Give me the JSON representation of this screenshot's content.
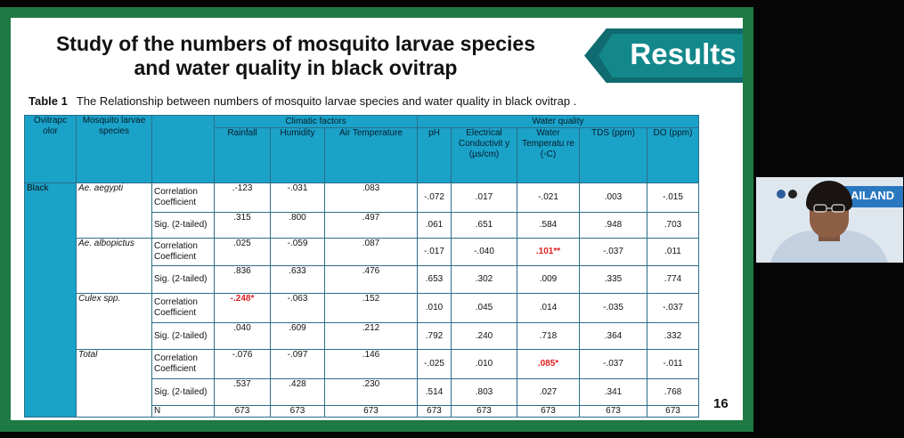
{
  "slide": {
    "title_line1": "Study of the numbers of mosquito larvae species",
    "title_line2": "and water quality in black ovitrap",
    "results_label": "Results",
    "caption_label": "Table 1",
    "caption_text": "The Relationship between numbers of mosquito larvae species and water quality in black ovitrap .",
    "page_number": "16"
  },
  "table": {
    "h_ovitrap": "Ovitrapc olor",
    "h_species": "Mosquito larvae species",
    "h_climatic": "Climatic factors",
    "h_water": "Water quality",
    "h_rainfall": "Rainfall",
    "h_humidity": "Humidity",
    "h_airtemp": "Air Temperature",
    "h_ph": "pH",
    "h_ec": "Electrical Conductivit y (µs/cm)",
    "h_wtemp": "Water Temperatu re (◦C)",
    "h_tds": "TDS (ppm)",
    "h_do": "DO (ppm)",
    "color_black": "Black",
    "sp1": "Ae. aegypti",
    "sp2": "Ae. albopictus",
    "sp3": "Culex spp.",
    "sp4": "Total",
    "stat_corr": "Correlation Coefficient",
    "stat_sig": "Sig. (2-tailed)",
    "stat_n": "N",
    "r1": [
      ".-123",
      "-.031",
      ".083",
      "-.072",
      ".017",
      "-.021",
      ".003",
      "-.015"
    ],
    "r2": [
      ".315",
      ".800",
      ".497",
      ".061",
      ".651",
      ".584",
      ".948",
      ".703"
    ],
    "r3": [
      ".025",
      "-.059",
      ".087",
      "-.017",
      "-.040",
      ".101**",
      "-.037",
      ".011"
    ],
    "r4": [
      ".836",
      ".633",
      ".476",
      ".653",
      ".302",
      ".009",
      ".335",
      ".774"
    ],
    "r5": [
      "-.248*",
      "-.063",
      ".152",
      ".010",
      ".045",
      ".014",
      "-.035",
      "-.037"
    ],
    "r6": [
      ".040",
      ".609",
      ".212",
      ".792",
      ".240",
      ".718",
      ".364",
      ".332"
    ],
    "r7": [
      "-.076",
      "-.097",
      ".146",
      "-.025",
      ".010",
      ".085*",
      "-.037",
      "-.011"
    ],
    "r8": [
      ".537",
      ".428",
      ".230",
      ".514",
      ".803",
      ".027",
      ".341",
      ".768"
    ],
    "r9": [
      "673",
      "673",
      "673",
      "673",
      "673",
      "673",
      "673",
      "673"
    ]
  },
  "webcam": {
    "banner_text": "AILAND"
  },
  "colors": {
    "frame": "#1e7a43",
    "header_blue": "#1ba2c9",
    "results_teal": "#13888b",
    "significant_red": "#e02020"
  }
}
